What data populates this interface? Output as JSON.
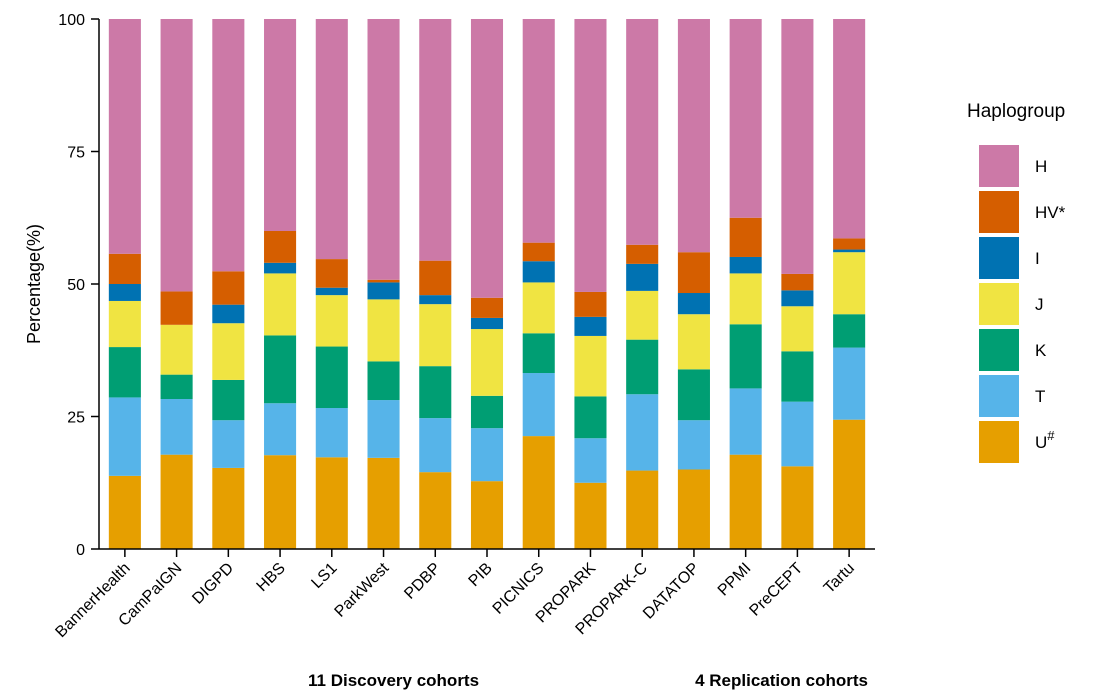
{
  "chart_data": {
    "type": "bar",
    "stacked": true,
    "ylabel": "Percentage(%)",
    "ylim": [
      0,
      100
    ],
    "yticks": [
      0,
      25,
      50,
      75,
      100
    ],
    "categories": [
      "BannerHealth",
      "CamPaIGN",
      "DIGPD",
      "HBS",
      "LS1",
      "ParkWest",
      "PDBP",
      "PIB",
      "PICNICS",
      "PROPARK",
      "PROPARK-C",
      "DATATOP",
      "PPMI",
      "PreCEPT",
      "Tartu"
    ],
    "groups": [
      {
        "label": "11 Discovery cohorts",
        "count": 11
      },
      {
        "label": "4 Replication cohorts",
        "count": 4
      }
    ],
    "legend": {
      "title": "Haplogroup",
      "position": "right"
    },
    "series": [
      {
        "name": "U",
        "sup": "#",
        "color": "#E69F00",
        "values": [
          13.8,
          17.8,
          15.3,
          17.7,
          17.3,
          17.2,
          14.5,
          12.8,
          21.3,
          12.5,
          14.8,
          15.0,
          17.8,
          15.6,
          24.4
        ]
      },
      {
        "name": "T",
        "sup": "",
        "color": "#56B4E9",
        "values": [
          14.8,
          10.5,
          9.0,
          9.8,
          9.3,
          10.9,
          10.2,
          10.0,
          11.9,
          8.4,
          14.4,
          9.3,
          12.5,
          12.2,
          13.6
        ]
      },
      {
        "name": "K",
        "sup": "",
        "color": "#009E73",
        "values": [
          9.5,
          4.6,
          7.6,
          12.8,
          11.6,
          7.3,
          9.8,
          6.1,
          7.5,
          7.9,
          10.3,
          9.6,
          12.1,
          9.5,
          6.3
        ]
      },
      {
        "name": "J",
        "sup": "",
        "color": "#F0E442",
        "values": [
          8.7,
          9.4,
          10.7,
          11.7,
          9.7,
          11.7,
          11.7,
          12.6,
          9.6,
          11.4,
          9.2,
          10.4,
          9.6,
          8.5,
          11.7
        ]
      },
      {
        "name": "I",
        "sup": "",
        "color": "#0072B2",
        "values": [
          3.2,
          0.0,
          3.5,
          2.0,
          1.4,
          3.2,
          1.7,
          2.1,
          4.0,
          3.6,
          5.1,
          4.0,
          3.1,
          3.0,
          0.5
        ]
      },
      {
        "name": "HV*",
        "sup": "",
        "color": "#D55E00",
        "values": [
          5.7,
          6.3,
          6.3,
          6.0,
          5.4,
          0.5,
          6.5,
          3.8,
          3.5,
          4.7,
          3.6,
          7.7,
          7.4,
          3.1,
          2.1
        ]
      },
      {
        "name": "H",
        "sup": "",
        "color": "#CC79A7",
        "values": [
          44.3,
          51.4,
          47.6,
          40.0,
          45.3,
          49.2,
          45.6,
          52.6,
          42.2,
          51.5,
          42.6,
          44.0,
          37.5,
          48.1,
          41.4
        ]
      }
    ]
  }
}
